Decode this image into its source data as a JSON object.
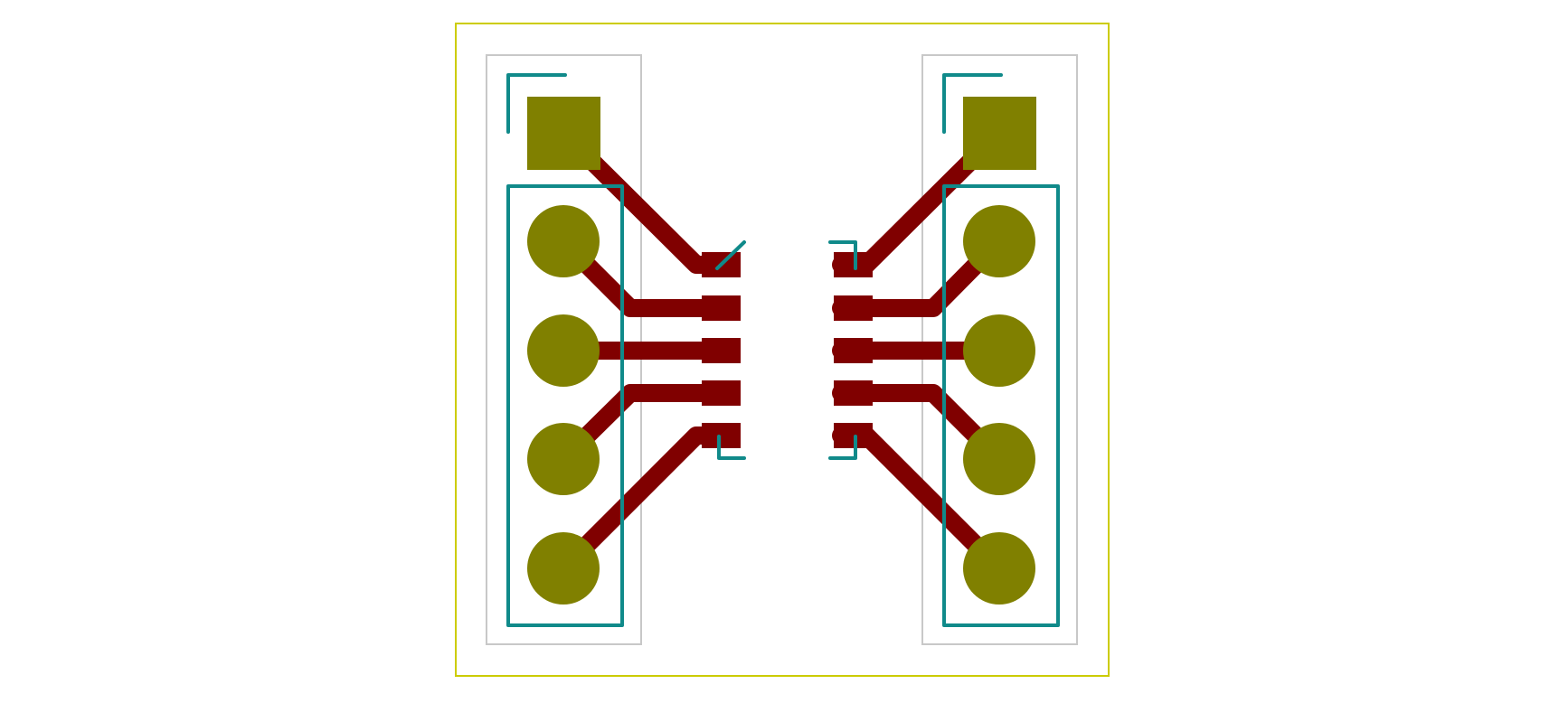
{
  "colors": {
    "background": "#ffffff",
    "board_outline": "#cccc00",
    "courtyard": "#c8c8c8",
    "copper_trace": "#800000",
    "pad_tht": "#808000",
    "silkscreen": "#108a8a"
  },
  "footprints": [
    {
      "name": "left-pin-header",
      "pin_count": 5,
      "pin1_shape": "square",
      "other_pins_shape": "circle"
    },
    {
      "name": "right-pin-header",
      "pin_count": 5,
      "pin1_shape": "square",
      "other_pins_shape": "circle"
    },
    {
      "name": "left-smd-pad-column",
      "pad_count": 5
    },
    {
      "name": "right-smd-pad-column",
      "pad_count": 5
    }
  ]
}
